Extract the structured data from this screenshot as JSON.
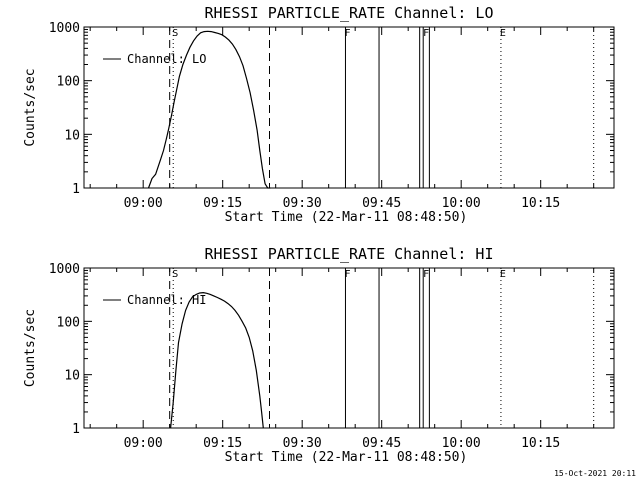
{
  "footer": {
    "timestamp": "15-Oct-2021 20:11"
  },
  "chart_data": [
    {
      "type": "line",
      "title": "RHESSI PARTICLE_RATE Channel: LO",
      "xlabel": "Start Time (22-Mar-11 08:48:50)",
      "ylabel": "Counts/sec",
      "yscale": "log",
      "ylim": [
        1,
        1000
      ],
      "xlim": [
        "08:48:50",
        "10:28:50"
      ],
      "xticks": [
        "09:00",
        "09:15",
        "09:30",
        "09:45",
        "10:00",
        "10:15"
      ],
      "yticks": [
        "1",
        "10",
        "100",
        "1000"
      ],
      "legend": {
        "placement": "top-left",
        "entries": [
          "Channel: LO"
        ]
      },
      "markers": [
        {
          "label": "S",
          "time": "09:05:40",
          "style": "dotted"
        },
        {
          "label": "F",
          "time": "09:38:10",
          "style": "solid"
        },
        {
          "label": "F",
          "time": "09:53:00",
          "style": "solid"
        },
        {
          "label": "E",
          "time": "10:07:30",
          "style": "dotted"
        }
      ],
      "dashed_lines": [
        "09:05:00",
        "09:23:50"
      ],
      "solid_lines": [
        "09:38:10",
        "09:44:30",
        "09:52:10",
        "09:52:50",
        "09:54:00"
      ],
      "dotted_lines": [
        "09:05:40",
        "10:07:30",
        "10:25:00"
      ],
      "series": [
        {
          "name": "Channel: LO",
          "x": [
            "09:01:00",
            "09:01:40",
            "09:02:20",
            "09:02:50",
            "09:03:20",
            "09:03:50",
            "09:04:20",
            "09:04:50",
            "09:05:20",
            "09:05:50",
            "09:06:20",
            "09:06:50",
            "09:07:30",
            "09:08:10",
            "09:08:50",
            "09:09:30",
            "09:10:10",
            "09:10:50",
            "09:11:30",
            "09:12:10",
            "09:12:50",
            "09:13:30",
            "09:14:10",
            "09:14:50",
            "09:15:30",
            "09:16:10",
            "09:16:50",
            "09:17:30",
            "09:18:10",
            "09:18:50",
            "09:19:30",
            "09:20:10",
            "09:20:50",
            "09:21:30",
            "09:22:00",
            "09:22:30",
            "09:23:00",
            "09:23:30",
            "09:24:00"
          ],
          "values": [
            1,
            1.5,
            1.8,
            2.5,
            3.5,
            5,
            8,
            13,
            22,
            40,
            70,
            120,
            200,
            300,
            420,
            550,
            680,
            780,
            820,
            830,
            820,
            790,
            760,
            720,
            650,
            570,
            480,
            380,
            280,
            190,
            110,
            60,
            28,
            12,
            5,
            2.3,
            1.2,
            1,
            1
          ]
        }
      ]
    },
    {
      "type": "line",
      "title": "RHESSI PARTICLE_RATE Channel: HI",
      "xlabel": "Start Time (22-Mar-11 08:48:50)",
      "ylabel": "Counts/sec",
      "yscale": "log",
      "ylim": [
        1,
        1000
      ],
      "xlim": [
        "08:48:50",
        "10:28:50"
      ],
      "xticks": [
        "09:00",
        "09:15",
        "09:30",
        "09:45",
        "10:00",
        "10:15"
      ],
      "yticks": [
        "1",
        "10",
        "100",
        "1000"
      ],
      "legend": {
        "placement": "top-left",
        "entries": [
          "Channel: HI"
        ]
      },
      "markers": [
        {
          "label": "S",
          "time": "09:05:40",
          "style": "dotted"
        },
        {
          "label": "F",
          "time": "09:38:10",
          "style": "solid"
        },
        {
          "label": "F",
          "time": "09:53:00",
          "style": "solid"
        },
        {
          "label": "E",
          "time": "10:07:30",
          "style": "dotted"
        }
      ],
      "dashed_lines": [
        "09:05:00",
        "09:23:50"
      ],
      "solid_lines": [
        "09:38:10",
        "09:44:30",
        "09:52:10",
        "09:52:50",
        "09:54:00"
      ],
      "dotted_lines": [
        "09:05:40",
        "10:07:30",
        "10:25:00"
      ],
      "series": [
        {
          "name": "Channel: HI",
          "x": [
            "09:05:10",
            "09:05:40",
            "09:06:10",
            "09:06:40",
            "09:07:20",
            "09:08:00",
            "09:08:40",
            "09:09:20",
            "09:10:00",
            "09:10:40",
            "09:11:20",
            "09:12:00",
            "09:12:40",
            "09:13:20",
            "09:14:00",
            "09:14:40",
            "09:15:20",
            "09:16:00",
            "09:16:40",
            "09:17:20",
            "09:18:00",
            "09:18:40",
            "09:19:20",
            "09:20:00",
            "09:20:40",
            "09:21:20",
            "09:22:00",
            "09:22:20",
            "09:22:40"
          ],
          "values": [
            1,
            3,
            12,
            40,
            90,
            160,
            230,
            290,
            320,
            340,
            345,
            335,
            320,
            300,
            280,
            260,
            240,
            215,
            190,
            160,
            130,
            100,
            75,
            50,
            28,
            12,
            4,
            2,
            1
          ]
        }
      ]
    }
  ]
}
